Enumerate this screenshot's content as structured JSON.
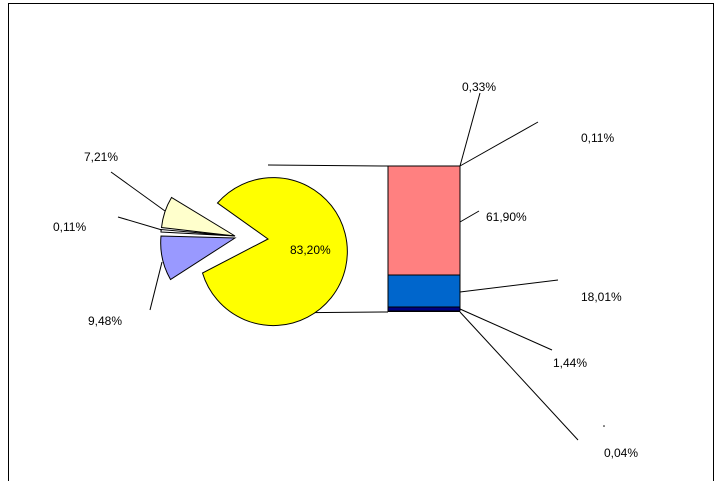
{
  "chart_data": {
    "type": "bar-of-pie",
    "pie": {
      "slices": [
        {
          "label": "83,20%",
          "value": 83.2,
          "color": "#FFFF00"
        },
        {
          "label": "7,21%",
          "value": 7.21,
          "color": "#FFFFCC"
        },
        {
          "label": "0,11%",
          "value": 0.11,
          "color": "#FFFFFF"
        },
        {
          "label": "9,48%",
          "value": 9.48,
          "color": "#9999FF"
        }
      ]
    },
    "bar": {
      "segments": [
        {
          "label": "0,33%",
          "value": 0.33,
          "color": "#FF8080"
        },
        {
          "label": "0,11%",
          "value": 0.11,
          "color": "#FF8080"
        },
        {
          "label": "61,90%",
          "value": 61.9,
          "color": "#FF8080"
        },
        {
          "label": "18,01%",
          "value": 18.01,
          "color": "#0066CC"
        },
        {
          "label": "1,44%",
          "value": 1.44,
          "color": "#000080"
        },
        {
          "label": "0,04%",
          "value": 0.04,
          "color": "#000080"
        }
      ]
    }
  }
}
